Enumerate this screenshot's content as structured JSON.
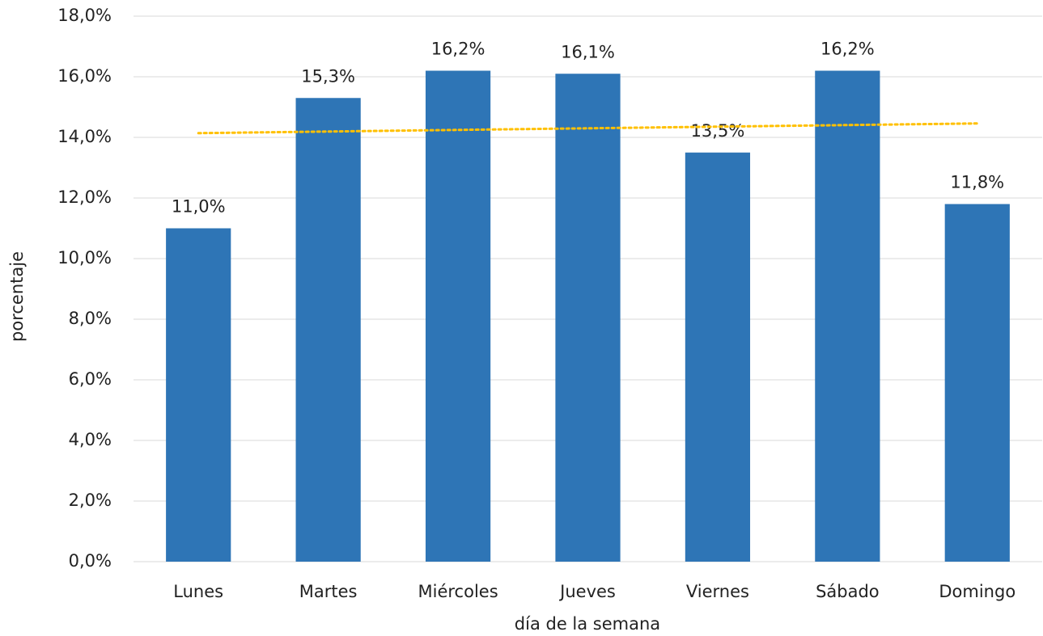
{
  "chart_data": {
    "type": "bar",
    "x_label": "día de la semana",
    "y_label": "porcentaje",
    "categories": [
      "Lunes",
      "Martes",
      "Miércoles",
      "Jueves",
      "Viernes",
      "Sábado",
      "Domingo"
    ],
    "values": [
      11.0,
      15.3,
      16.2,
      16.1,
      13.5,
      16.2,
      11.8
    ],
    "value_labels": [
      "11,0%",
      "15,3%",
      "16,2%",
      "16,1%",
      "13,5%",
      "16,2%",
      "11,8%"
    ],
    "color": "#2e75b6",
    "trendline": {
      "color": "#ffc000",
      "values": [
        14.14,
        14.46
      ]
    },
    "ylim": [
      0,
      18
    ],
    "yticks": [
      {
        "value": 0,
        "label": "0,0%"
      },
      {
        "value": 2,
        "label": "2,0%"
      },
      {
        "value": 4,
        "label": "4,0%"
      },
      {
        "value": 6,
        "label": "6,0%"
      },
      {
        "value": 8,
        "label": "8,0%"
      },
      {
        "value": 10,
        "label": "10,0%"
      },
      {
        "value": 12,
        "label": "12,0%"
      },
      {
        "value": 14,
        "label": "14,0%"
      },
      {
        "value": 16,
        "label": "16,0%"
      },
      {
        "value": 18,
        "label": "18,0%"
      }
    ],
    "grid": true
  }
}
